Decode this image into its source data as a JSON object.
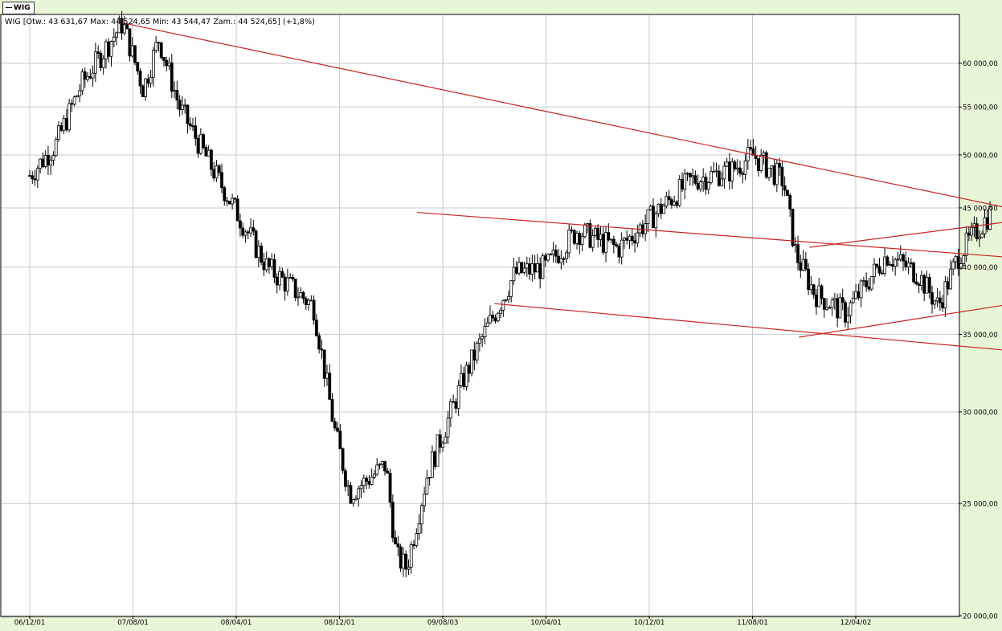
{
  "window": {
    "series_tag": "WIG"
  },
  "chart_data": {
    "type": "candlestick",
    "title": "WIG [Otw.: 43 631,67   Max: 44 524,65   Min: 43 544,47   Zam.: 44 524,65]  (+1,8%)",
    "series_name": "WIG",
    "ohlc_summary": {
      "open": "43 631,67",
      "max": "44 524,65",
      "min": "43 544,47",
      "close": "44 524,65",
      "change": "(+1,8%)"
    },
    "x_tick_labels": [
      "06/12/01",
      "07/08/01",
      "08/04/01",
      "08/12/01",
      "09/08/03",
      "10/04/01",
      "10/12/01",
      "11/08/01",
      "12/04/02"
    ],
    "y_scale": "log",
    "y_ticks": [
      20000,
      25000,
      30000,
      35000,
      40000,
      45000,
      50000,
      55000,
      60000
    ],
    "y_tick_labels": [
      "20 000,00",
      "25 000,00",
      "30 000,00",
      "35 000,00",
      "40 000,00",
      "45 000,00",
      "50 000,00",
      "55 000,00",
      "60 000,00"
    ],
    "ylim": [
      20000,
      66000
    ],
    "grid": true,
    "legend": "top-left",
    "colors": {
      "background": "#ffffff",
      "frame": "#e8f6d8",
      "candle": "#000000",
      "trendline": "#cc2222",
      "grid": "#c8c8c8"
    },
    "candles_path": [
      [
        0,
        48000
      ],
      [
        0.25,
        51000
      ],
      [
        0.5,
        57500
      ],
      [
        0.9,
        65000
      ],
      [
        1.1,
        57000
      ],
      [
        1.25,
        63000
      ],
      [
        1.45,
        55000
      ],
      [
        1.75,
        49000
      ],
      [
        2.3,
        40000
      ],
      [
        2.75,
        37000
      ],
      [
        2.95,
        29000
      ],
      [
        3.1,
        25500
      ],
      [
        3.45,
        27000
      ],
      [
        3.55,
        22500
      ],
      [
        3.65,
        22000
      ],
      [
        3.85,
        26500
      ],
      [
        4.2,
        32000
      ],
      [
        4.4,
        35000
      ],
      [
        4.7,
        39500
      ],
      [
        5.0,
        40000
      ],
      [
        5.3,
        43000
      ],
      [
        5.7,
        41500
      ],
      [
        6.0,
        44000
      ],
      [
        6.4,
        47500
      ],
      [
        6.8,
        48500
      ],
      [
        7.0,
        50000
      ],
      [
        7.3,
        47500
      ],
      [
        7.42,
        41000
      ],
      [
        7.6,
        38000
      ],
      [
        7.9,
        36500
      ],
      [
        8.3,
        41000
      ],
      [
        8.6,
        39500
      ],
      [
        8.8,
        37000
      ],
      [
        9.0,
        41000
      ],
      [
        9.3,
        44500
      ]
    ],
    "trendlines": [
      {
        "x1": 0.9,
        "y1": 65000,
        "x2": 10.1,
        "y2": 43800
      },
      {
        "x1": 3.75,
        "y1": 44600,
        "x2": 10.1,
        "y2": 40400
      },
      {
        "x1": 4.5,
        "y1": 37200,
        "x2": 10.1,
        "y2": 33500
      },
      {
        "x1": 7.55,
        "y1": 41600,
        "x2": 10.1,
        "y2": 44500
      },
      {
        "x1": 7.45,
        "y1": 34800,
        "x2": 9.95,
        "y2": 37700
      }
    ]
  }
}
